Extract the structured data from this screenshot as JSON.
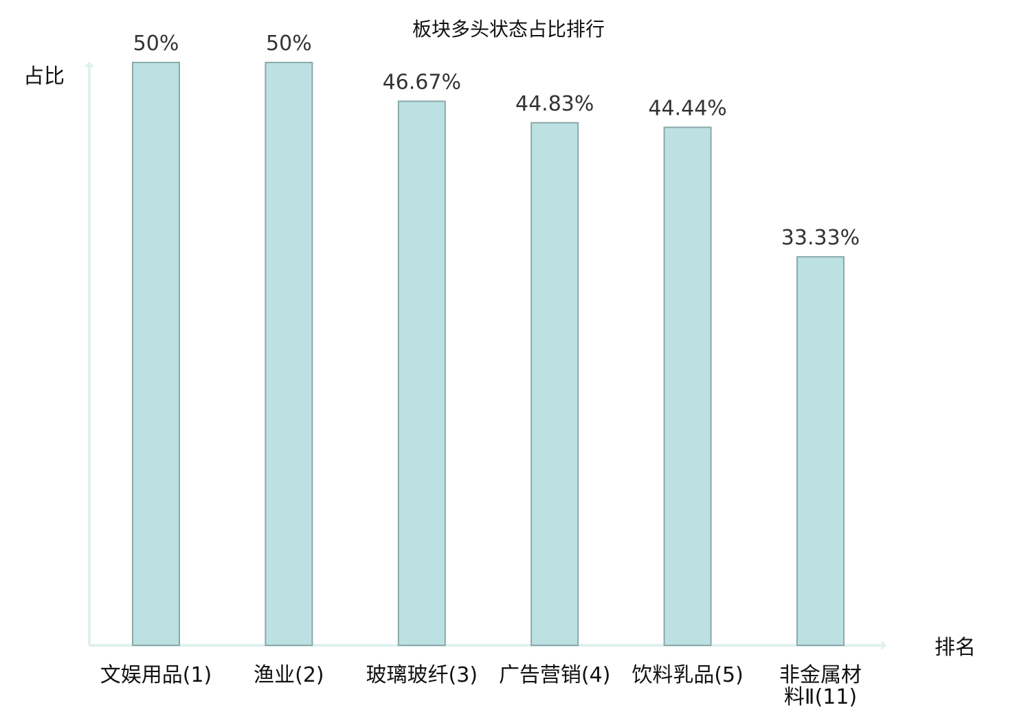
{
  "chart_data": {
    "type": "bar",
    "title": "板块多头状态占比排行",
    "ylabel": "占比",
    "xlabel": "排名",
    "categories": [
      [
        "文娱用品(1)"
      ],
      [
        "渔业(2)"
      ],
      [
        "玻璃玻纤(3)"
      ],
      [
        "广告营销(4)"
      ],
      [
        "饮料乳品(5)"
      ],
      [
        "非金属材",
        "料Ⅱ(11)"
      ]
    ],
    "values": [
      50,
      50,
      46.67,
      44.83,
      44.44,
      33.33
    ],
    "value_labels": [
      "50%",
      "50%",
      "46.67%",
      "44.83%",
      "44.44%",
      "33.33%"
    ],
    "highlight_index": 5,
    "ylim": [
      0,
      50
    ],
    "grid": false,
    "colors": {
      "bar_fill": "#bde1e3",
      "bar_stroke": "#8aa8a9",
      "axis": "#dff1ef",
      "highlight_text": "#e00000",
      "text": "#111111",
      "value_text": "#333333"
    }
  }
}
